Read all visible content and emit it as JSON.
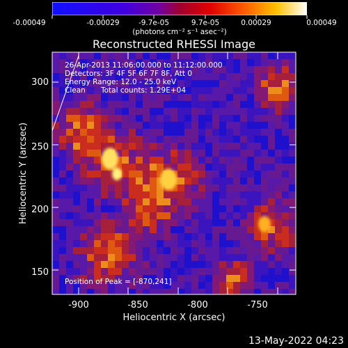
{
  "colorbar": {
    "tick_labels": [
      "-0.00049",
      "-0.00029",
      "-9.7e-05",
      "9.7e-05",
      "0.00029",
      "0.00049"
    ],
    "units": "(photons cm⁻² s⁻¹ asec⁻²)",
    "range": [
      -0.00049,
      0.00049
    ]
  },
  "plot": {
    "title": "Reconstructed RHESSI Image",
    "xlabel": "Heliocentric X (arcsec)",
    "ylabel": "Heliocentric Y (arcsec)",
    "x_ticks": [
      "-900",
      "-850",
      "-800",
      "-750"
    ],
    "y_ticks": [
      "300",
      "250",
      "200",
      "150"
    ],
    "xlim": [
      -918,
      -722
    ],
    "ylim": [
      133,
      333
    ]
  },
  "annotations": {
    "time_range": "26-Apr-2013 11:06:00.000 to 11:12:00.000",
    "detectors": "Detectors: 3F 4F 5F 6F 7F 8F, Att 0",
    "energy": "Energy Range: 12.0 - 25.0 keV",
    "method": "Clean",
    "total_counts": "Total counts: 1.29E+04",
    "peak": "Position of Peak = [-870,241]"
  },
  "footer": {
    "timestamp": "13-May-2022 04:23"
  },
  "peak_position": [
    -870,
    241
  ],
  "colors": {
    "background": "#000000",
    "text": "#ffffff"
  }
}
